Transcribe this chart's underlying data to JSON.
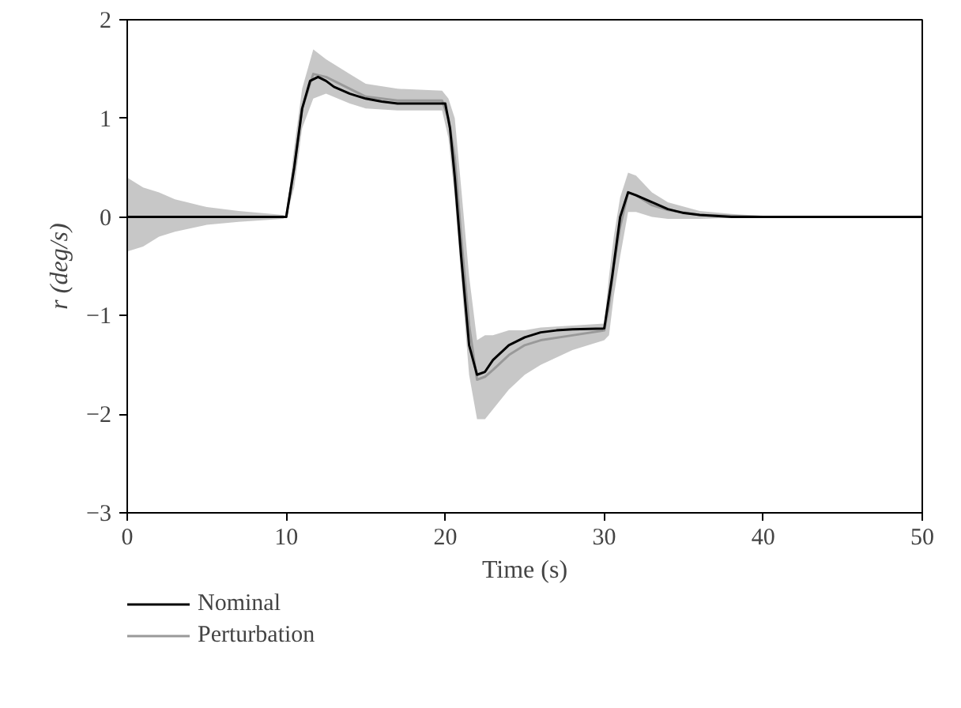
{
  "chart_data": {
    "type": "line",
    "xlabel": "Time (s)",
    "ylabel": "r (deg/s)",
    "xlim": [
      0,
      50
    ],
    "ylim": [
      -3,
      2
    ],
    "xticks": [
      0,
      10,
      20,
      30,
      40,
      50
    ],
    "yticks": [
      -3,
      -2,
      -1,
      0,
      1,
      2
    ],
    "grid": false,
    "legend": "bottom left",
    "line_style": "solid",
    "marker": "none",
    "series": [
      {
        "name": "Perturbation",
        "color": "#999999",
        "x": [
          0,
          1,
          2,
          3,
          5,
          7,
          9.8,
          10,
          10.5,
          11,
          11.7,
          12.5,
          14,
          15,
          17,
          19.8,
          20.2,
          20.6,
          21,
          21.5,
          22,
          22.5,
          23,
          24,
          25,
          26,
          28,
          30,
          30.3,
          30.6,
          31,
          31.5,
          32,
          33,
          34,
          36,
          38,
          40,
          45,
          50
        ],
        "values": [
          0,
          0,
          0,
          0,
          0,
          0,
          0,
          0,
          0.5,
          1.1,
          1.45,
          1.42,
          1.3,
          1.22,
          1.18,
          1.18,
          1.0,
          0.6,
          -0.2,
          -1.1,
          -1.65,
          -1.62,
          -1.55,
          -1.4,
          -1.3,
          -1.25,
          -1.2,
          -1.15,
          -0.9,
          -0.5,
          -0.1,
          0.25,
          0.22,
          0.12,
          0.07,
          0.02,
          0.01,
          0,
          0,
          0
        ],
        "lower": [
          -0.35,
          -0.3,
          -0.2,
          -0.15,
          -0.08,
          -0.05,
          -0.02,
          0,
          0.3,
          0.9,
          1.2,
          1.25,
          1.15,
          1.1,
          1.08,
          1.08,
          0.8,
          0.2,
          -0.6,
          -1.6,
          -2.05,
          -2.05,
          -1.95,
          -1.75,
          -1.6,
          -1.5,
          -1.35,
          -1.25,
          -1.2,
          -0.8,
          -0.4,
          0.05,
          0.05,
          0.0,
          -0.02,
          -0.02,
          -0.01,
          -0.01,
          0,
          0
        ],
        "upper": [
          0.4,
          0.3,
          0.25,
          0.18,
          0.1,
          0.06,
          0.02,
          0,
          0.7,
          1.3,
          1.7,
          1.6,
          1.45,
          1.35,
          1.3,
          1.28,
          1.2,
          1.0,
          0.3,
          -0.6,
          -1.25,
          -1.2,
          -1.2,
          -1.15,
          -1.15,
          -1.12,
          -1.1,
          -1.08,
          -0.6,
          -0.2,
          0.2,
          0.45,
          0.42,
          0.25,
          0.15,
          0.06,
          0.03,
          0.01,
          0.01,
          0
        ]
      },
      {
        "name": "Nominal",
        "color": "#000000",
        "x": [
          0,
          10,
          10.5,
          11,
          11.5,
          12,
          12.5,
          13,
          14,
          15,
          16,
          17,
          18,
          19,
          20,
          20.3,
          20.6,
          21,
          21.5,
          22,
          22.5,
          23,
          24,
          25,
          26,
          27,
          28,
          30,
          30.5,
          31,
          31.5,
          32,
          33,
          34,
          35,
          36,
          37,
          38,
          40,
          45,
          50
        ],
        "values": [
          0,
          0,
          0.5,
          1.1,
          1.38,
          1.42,
          1.38,
          1.32,
          1.25,
          1.2,
          1.17,
          1.15,
          1.15,
          1.15,
          1.15,
          0.9,
          0.4,
          -0.4,
          -1.3,
          -1.6,
          -1.57,
          -1.45,
          -1.3,
          -1.22,
          -1.17,
          -1.15,
          -1.14,
          -1.13,
          -0.6,
          0.0,
          0.25,
          0.22,
          0.15,
          0.08,
          0.04,
          0.02,
          0.01,
          0,
          0,
          0,
          0
        ]
      }
    ]
  }
}
